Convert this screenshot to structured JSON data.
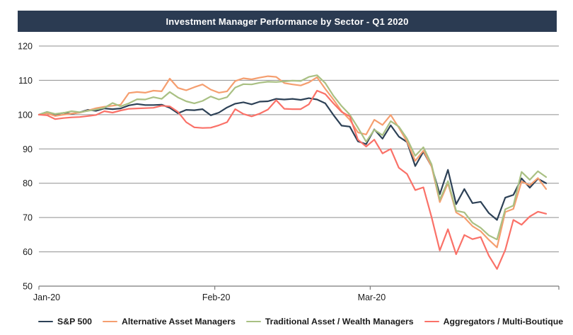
{
  "chart_data": {
    "type": "line",
    "title": "Investment Manager Performance by Sector - Q1 2020",
    "xlabel": "",
    "ylabel": "",
    "ylim": [
      50,
      120
    ],
    "yticks": [
      120,
      110,
      100,
      90,
      80,
      70,
      60,
      50
    ],
    "grid": "horizontal",
    "legend_position": "bottom",
    "x_tick_labels": [
      "Jan-20",
      "Feb-20",
      "Mar-20"
    ],
    "x_tick_day_index": [
      0,
      21.5,
      40.5
    ],
    "dates": [
      "12/31",
      "1/2",
      "1/3",
      "1/6",
      "1/7",
      "1/8",
      "1/9",
      "1/10",
      "1/13",
      "1/14",
      "1/15",
      "1/16",
      "1/17",
      "1/21",
      "1/22",
      "1/23",
      "1/24",
      "1/27",
      "1/28",
      "1/29",
      "1/30",
      "1/31",
      "2/3",
      "2/4",
      "2/5",
      "2/6",
      "2/7",
      "2/10",
      "2/11",
      "2/12",
      "2/13",
      "2/14",
      "2/18",
      "2/19",
      "2/20",
      "2/21",
      "2/24",
      "2/25",
      "2/26",
      "2/27",
      "2/28",
      "3/2",
      "3/3",
      "3/4",
      "3/5",
      "3/6",
      "3/9",
      "3/10",
      "3/11",
      "3/12",
      "3/13",
      "3/16",
      "3/17",
      "3/18",
      "3/19",
      "3/20",
      "3/23",
      "3/24",
      "3/25",
      "3/26",
      "3/27",
      "3/30",
      "3/31"
    ],
    "series": [
      {
        "name": "S&P 500",
        "color": "#2d4156",
        "values": [
          100,
          100.8,
          100.1,
          100.5,
          100.2,
          100.7,
          101.4,
          101.1,
          101.8,
          101.6,
          101.8,
          102.7,
          103.1,
          102.8,
          102.8,
          102.9,
          102.0,
          100.4,
          101.4,
          101.3,
          101.6,
          99.8,
          100.6,
          102.1,
          103.2,
          103.6,
          103.0,
          103.8,
          103.9,
          104.6,
          104.4,
          104.6,
          104.3,
          104.8,
          104.4,
          103.3,
          99.9,
          96.8,
          96.5,
          92.2,
          91.4,
          95.7,
          93.0,
          96.9,
          93.6,
          92.0,
          85.0,
          89.2,
          84.9,
          76.8,
          83.9,
          73.9,
          78.3,
          74.2,
          74.6,
          71.3,
          69.3,
          75.8,
          76.6,
          81.4,
          78.7,
          81.3,
          80.0
        ]
      },
      {
        "name": "Alternative Asset Managers",
        "color": "#f59e6f",
        "values": [
          100,
          100.4,
          99.6,
          100.0,
          100.3,
          100.6,
          101.2,
          101.9,
          102.3,
          102.6,
          102.9,
          106.3,
          106.6,
          106.4,
          107.0,
          106.8,
          110.5,
          107.8,
          107.1,
          108.0,
          108.8,
          107.3,
          106.4,
          106.8,
          109.8,
          110.6,
          110.3,
          110.8,
          111.2,
          111.0,
          109.2,
          108.8,
          108.5,
          109.4,
          110.9,
          107.5,
          104.4,
          101.0,
          98.5,
          94.8,
          94.2,
          98.5,
          97.0,
          99.9,
          96.2,
          92.1,
          86.5,
          89.5,
          84.9,
          74.5,
          80.0,
          71.5,
          70.0,
          67.5,
          66.0,
          63.5,
          61.3,
          71.6,
          72.5,
          80.5,
          79.4,
          81.5,
          78.3
        ]
      },
      {
        "name": "Traditional Asset / Wealth Managers",
        "color": "#a9c083",
        "values": [
          100,
          100.8,
          100.2,
          100.5,
          101.0,
          100.7,
          101.1,
          101.5,
          102.0,
          103.4,
          102.4,
          103.3,
          104.5,
          104.4,
          105.1,
          104.6,
          106.6,
          105.0,
          103.9,
          103.3,
          104.0,
          105.3,
          104.4,
          105.1,
          107.9,
          108.9,
          108.8,
          109.3,
          109.6,
          109.5,
          109.7,
          109.9,
          109.8,
          111.0,
          111.5,
          109.2,
          105.5,
          102.5,
          100.0,
          96.2,
          92.1,
          95.6,
          94.0,
          98.1,
          96.5,
          93.0,
          88.0,
          90.5,
          85.5,
          75.2,
          80.6,
          72.0,
          71.5,
          68.5,
          67.0,
          64.8,
          63.6,
          72.4,
          73.5,
          83.3,
          81.0,
          83.5,
          81.8
        ]
      },
      {
        "name": "Aggregators / Multi-Boutique",
        "color": "#fa7168",
        "values": [
          100,
          99.8,
          98.7,
          99.0,
          99.2,
          99.3,
          99.6,
          99.9,
          101.0,
          100.6,
          101.2,
          101.7,
          101.8,
          101.9,
          102.0,
          102.6,
          102.4,
          100.8,
          97.8,
          96.3,
          96.1,
          96.2,
          96.9,
          97.8,
          101.6,
          100.2,
          99.5,
          100.3,
          101.5,
          104.2,
          101.7,
          101.6,
          101.6,
          103.0,
          107.0,
          106.0,
          103.3,
          100.8,
          99.5,
          92.7,
          90.7,
          92.7,
          88.7,
          90.0,
          84.5,
          82.7,
          78.0,
          78.8,
          70.1,
          60.4,
          66.6,
          59.3,
          64.9,
          63.7,
          64.3,
          58.9,
          55.0,
          60.5,
          69.3,
          67.9,
          70.3,
          71.7,
          71.1
        ]
      }
    ],
    "colors": {
      "title_bar_bg": "#2b3b52",
      "title_text": "#ffffff",
      "grid_line": "#8f8f8f",
      "axis_line": "#7a7a7a",
      "tick_text": "#1b1b1b"
    }
  }
}
